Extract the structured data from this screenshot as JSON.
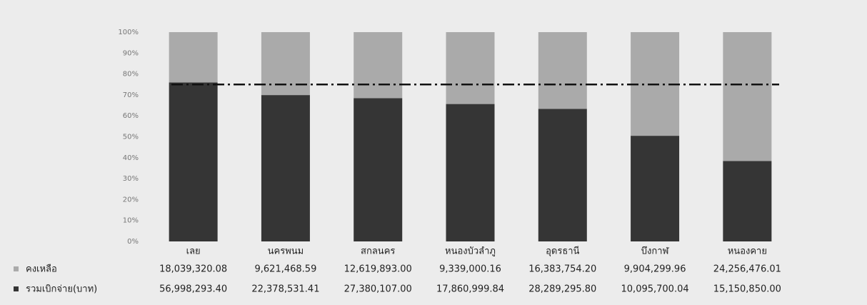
{
  "chart_data": {
    "type": "bar100",
    "categories": [
      "เลย",
      "นครพนม",
      "สกลนคร",
      "หนองบัวลำภู",
      "อุดรธานี",
      "บึงกาฬ",
      "หนองคาย"
    ],
    "series": [
      {
        "name": "คงเหลือ",
        "color": "#aaaaaa",
        "values": [
          18039320.08,
          9621468.59,
          12619893.0,
          9339000.16,
          16383754.2,
          9904299.96,
          24256476.01
        ],
        "value_labels": [
          "18,039,320.08",
          "9,621,468.59",
          "12,619,893.00",
          "9,339,000.16",
          "16,383,754.20",
          "9,904,299.96",
          "24,256,476.01"
        ]
      },
      {
        "name": "รวมเบิกจ่าย(บาท)",
        "color": "#353535",
        "values": [
          56998293.4,
          22378531.41,
          27380107.0,
          17860999.84,
          28289295.8,
          10095700.04,
          15150850.0
        ],
        "value_labels": [
          "56,998,293.40",
          "22,378,531.41",
          "27,380,107.00",
          "17,860,999.84",
          "28,289,295.80",
          "10,095,700.04",
          "15,150,850.00"
        ]
      }
    ],
    "ylim": [
      0,
      100
    ],
    "yticks": [
      {
        "value": 0,
        "label": "0%"
      },
      {
        "value": 10,
        "label": "10%"
      },
      {
        "value": 20,
        "label": "20%"
      },
      {
        "value": 30,
        "label": "30%"
      },
      {
        "value": 40,
        "label": "40%"
      },
      {
        "value": 50,
        "label": "50%"
      },
      {
        "value": 60,
        "label": "60%"
      },
      {
        "value": 70,
        "label": "70%"
      },
      {
        "value": 80,
        "label": "80%"
      },
      {
        "value": 90,
        "label": "90%"
      },
      {
        "value": 100,
        "label": "100%"
      }
    ],
    "reference_line": 75,
    "legend": "table"
  }
}
